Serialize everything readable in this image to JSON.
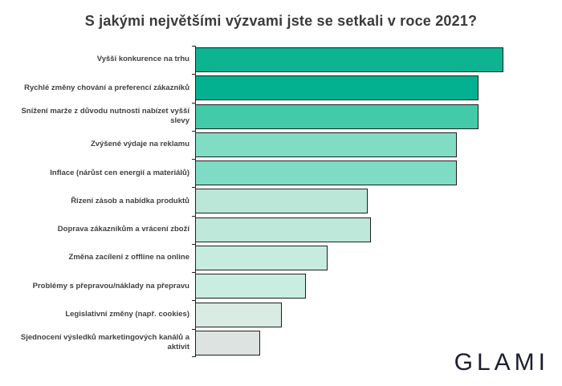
{
  "chart": {
    "brand": "GLAMI"
  },
  "chart_data": {
    "type": "bar",
    "orientation": "horizontal",
    "title": "S jakými největšími výzvami jste se setkali v roce 2021?",
    "categories": [
      "Vyšší konkurence na trhu",
      "Rychlé změny chování a preferencí zákazníků",
      "Snížení marže z důvodu nutnosti nabízet vyšší slevy",
      "Zvýšené výdaje na reklamu",
      "Inflace (nárůst cen energií a materiálů)",
      "Řízení zásob a nabídka produktů",
      "Doprava zákazníkům a vrácení zboží",
      "Změna zacílení z offline na online",
      "Problémy s přepravou/náklady na přepravu",
      "Legislativní změny (např. cookies)",
      "Sjednocení výsledků marketingových kanálů a aktivit"
    ],
    "values": [
      100,
      92,
      92,
      85,
      85,
      56,
      57,
      43,
      36,
      28,
      21
    ],
    "value_scale": "relative length, longest bar = 100 (no numeric axis shown)",
    "xlim": [
      0,
      100
    ],
    "grid": false,
    "legend": false,
    "bar_colors": [
      "#0db492",
      "#03b191",
      "#43caa9",
      "#80ddc4",
      "#7edcc4",
      "#bbe7d8",
      "#bde8da",
      "#c6ecdf",
      "#c9ede1",
      "#d9ebe3",
      "#dce3e1"
    ],
    "bar_edge_color": "#1e1e1e",
    "axis_color": "#222222",
    "title_color": "#3a3a3a",
    "label_color": "#414141",
    "brand_color": "#1d1d32"
  }
}
